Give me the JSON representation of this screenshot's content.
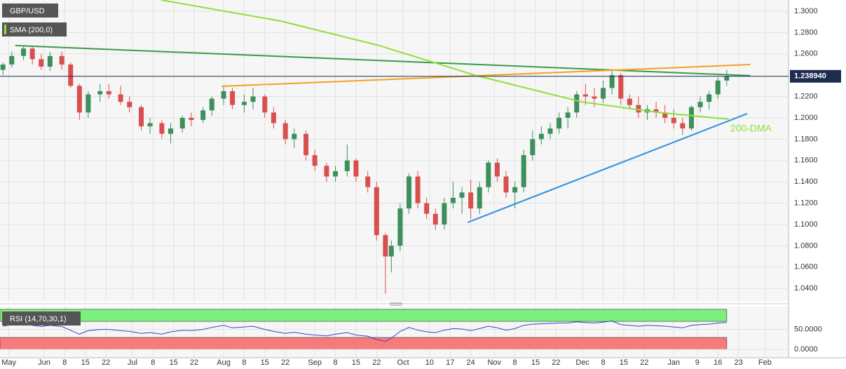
{
  "chart_data": {
    "type": "candlestick",
    "title": "GBP/USD",
    "indicator": "SMA (200,0)",
    "up_color": "#3d8f5c",
    "down_color": "#d94f4f",
    "xlim": [
      -15,
      253
    ],
    "ylim": [
      1.0276,
      1.3105
    ],
    "grid": true,
    "xticks": [
      {
        "value": -12,
        "label": "May"
      },
      {
        "value": 0,
        "label": "Jun"
      },
      {
        "value": 7,
        "label": "8"
      },
      {
        "value": 14,
        "label": "15"
      },
      {
        "value": 21,
        "label": "22"
      },
      {
        "value": 30,
        "label": "Jul"
      },
      {
        "value": 37,
        "label": "8"
      },
      {
        "value": 44,
        "label": "15"
      },
      {
        "value": 51,
        "label": "22"
      },
      {
        "value": 61,
        "label": "Aug"
      },
      {
        "value": 68,
        "label": "8"
      },
      {
        "value": 75,
        "label": "15"
      },
      {
        "value": 82,
        "label": "22"
      },
      {
        "value": 92,
        "label": "Sep"
      },
      {
        "value": 99,
        "label": "8"
      },
      {
        "value": 106,
        "label": "15"
      },
      {
        "value": 113,
        "label": "22"
      },
      {
        "value": 122,
        "label": "Oct"
      },
      {
        "value": 131,
        "label": "10"
      },
      {
        "value": 138,
        "label": "17"
      },
      {
        "value": 145,
        "label": "24"
      },
      {
        "value": 153,
        "label": "Nov"
      },
      {
        "value": 160,
        "label": "8"
      },
      {
        "value": 167,
        "label": "15"
      },
      {
        "value": 174,
        "label": "22"
      },
      {
        "value": 183,
        "label": "Dec"
      },
      {
        "value": 190,
        "label": "8"
      },
      {
        "value": 197,
        "label": "15"
      },
      {
        "value": 204,
        "label": "22"
      },
      {
        "value": 214,
        "label": "Jan"
      },
      {
        "value": 222,
        "label": "9"
      },
      {
        "value": 229,
        "label": "16"
      },
      {
        "value": 236,
        "label": "23"
      },
      {
        "value": 245,
        "label": "Feb"
      }
    ],
    "yticks": [
      {
        "value": 1.3,
        "label": "1.3000"
      },
      {
        "value": 1.28,
        "label": "1.2800"
      },
      {
        "value": 1.26,
        "label": "1.2600"
      },
      {
        "value": 1.22,
        "label": "1.2200"
      },
      {
        "value": 1.2,
        "label": "1.2000"
      },
      {
        "value": 1.18,
        "label": "1.1800"
      },
      {
        "value": 1.16,
        "label": "1.1600"
      },
      {
        "value": 1.14,
        "label": "1.1400"
      },
      {
        "value": 1.12,
        "label": "1.1200"
      },
      {
        "value": 1.1,
        "label": "1.1000"
      },
      {
        "value": 1.08,
        "label": "1.0800"
      },
      {
        "value": 1.06,
        "label": "1.0600"
      },
      {
        "value": 1.04,
        "label": "1.0400"
      }
    ],
    "x": [
      -14,
      -11,
      -7,
      -4,
      -1,
      2,
      6,
      9,
      12,
      15,
      19,
      22,
      26,
      29,
      33,
      36,
      40,
      43,
      47,
      50,
      54,
      57,
      61,
      64,
      68,
      71,
      75,
      78,
      82,
      85,
      89,
      92,
      96,
      99,
      103,
      106,
      110,
      113,
      116,
      118,
      121,
      124,
      127,
      130,
      133,
      136,
      139,
      142,
      145,
      148,
      151,
      154,
      157,
      160,
      163,
      166,
      169,
      172,
      175,
      178,
      181,
      184,
      187,
      190,
      193,
      196,
      199,
      202,
      205,
      208,
      211,
      214,
      217,
      220,
      223,
      226,
      229,
      232
    ],
    "open": [
      1.245,
      1.25,
      1.258,
      1.265,
      1.255,
      1.248,
      1.258,
      1.25,
      1.23,
      1.205,
      1.222,
      1.225,
      1.222,
      1.215,
      1.21,
      1.192,
      1.195,
      1.185,
      1.19,
      1.2,
      1.198,
      1.207,
      1.218,
      1.225,
      1.212,
      1.215,
      1.22,
      1.205,
      1.195,
      1.18,
      1.185,
      1.165,
      1.155,
      1.145,
      1.15,
      1.16,
      1.145,
      1.135,
      1.09,
      1.07,
      1.08,
      1.115,
      1.145,
      1.12,
      1.11,
      1.1,
      1.12,
      1.125,
      1.13,
      1.115,
      1.135,
      1.158,
      1.145,
      1.13,
      1.135,
      1.165,
      1.18,
      1.185,
      1.19,
      1.2,
      1.205,
      1.222,
      1.22,
      1.218,
      1.228,
      1.24,
      1.218,
      1.212,
      1.205,
      1.208,
      1.205,
      1.2,
      1.195,
      1.19,
      1.21,
      1.215,
      1.222,
      1.235
    ],
    "high": [
      1.252,
      1.262,
      1.268,
      1.267,
      1.26,
      1.262,
      1.262,
      1.252,
      1.232,
      1.225,
      1.232,
      1.232,
      1.23,
      1.22,
      1.212,
      1.2,
      1.198,
      1.195,
      1.202,
      1.205,
      1.21,
      1.22,
      1.23,
      1.228,
      1.222,
      1.228,
      1.222,
      1.21,
      1.198,
      1.19,
      1.188,
      1.17,
      1.158,
      1.155,
      1.175,
      1.162,
      1.15,
      1.14,
      1.092,
      1.085,
      1.12,
      1.148,
      1.15,
      1.125,
      1.115,
      1.125,
      1.14,
      1.135,
      1.142,
      1.14,
      1.16,
      1.162,
      1.15,
      1.14,
      1.17,
      1.188,
      1.192,
      1.195,
      1.205,
      1.21,
      1.225,
      1.232,
      1.228,
      1.235,
      1.245,
      1.242,
      1.222,
      1.22,
      1.212,
      1.215,
      1.212,
      1.208,
      1.2,
      1.212,
      1.22,
      1.225,
      1.238,
      1.245
    ],
    "low": [
      1.24,
      1.247,
      1.254,
      1.25,
      1.245,
      1.244,
      1.245,
      1.228,
      1.198,
      1.2,
      1.215,
      1.218,
      1.212,
      1.205,
      1.188,
      1.185,
      1.18,
      1.176,
      1.186,
      1.192,
      1.195,
      1.202,
      1.212,
      1.208,
      1.205,
      1.208,
      1.2,
      1.19,
      1.175,
      1.172,
      1.16,
      1.15,
      1.14,
      1.14,
      1.145,
      1.14,
      1.13,
      1.085,
      1.035,
      1.055,
      1.075,
      1.11,
      1.115,
      1.105,
      1.095,
      1.095,
      1.115,
      1.11,
      1.105,
      1.11,
      1.13,
      1.14,
      1.125,
      1.115,
      1.13,
      1.16,
      1.175,
      1.18,
      1.185,
      1.19,
      1.2,
      1.212,
      1.21,
      1.214,
      1.222,
      1.212,
      1.208,
      1.2,
      1.198,
      1.2,
      1.195,
      1.19,
      1.184,
      1.188,
      1.205,
      1.208,
      1.218,
      1.23
    ],
    "close": [
      1.25,
      1.258,
      1.265,
      1.255,
      1.248,
      1.258,
      1.25,
      1.23,
      1.205,
      1.222,
      1.225,
      1.222,
      1.215,
      1.21,
      1.192,
      1.195,
      1.185,
      1.19,
      1.2,
      1.198,
      1.207,
      1.218,
      1.225,
      1.212,
      1.215,
      1.22,
      1.205,
      1.195,
      1.18,
      1.185,
      1.165,
      1.155,
      1.145,
      1.15,
      1.16,
      1.145,
      1.135,
      1.09,
      1.07,
      1.08,
      1.115,
      1.145,
      1.12,
      1.11,
      1.1,
      1.12,
      1.125,
      1.13,
      1.115,
      1.135,
      1.158,
      1.145,
      1.13,
      1.135,
      1.165,
      1.18,
      1.185,
      1.19,
      1.2,
      1.205,
      1.222,
      1.22,
      1.218,
      1.228,
      1.24,
      1.218,
      1.212,
      1.205,
      1.208,
      1.205,
      1.2,
      1.195,
      1.19,
      1.21,
      1.215,
      1.222,
      1.235,
      1.239
    ],
    "last_price": {
      "value": 1.23894,
      "label": "1.238940",
      "color": "#1d2b4f"
    },
    "sma": {
      "label": "200-DMA",
      "color": "#8ee03a",
      "x": [
        39.8,
        80.3,
        113.6,
        147,
        182.7,
        209,
        232.7
      ],
      "values": [
        1.3105,
        1.2908,
        1.268,
        1.2395,
        1.215,
        1.205,
        1.1987
      ]
    },
    "trendlines": [
      {
        "color": "#3d9a4a",
        "x": [
          -9.8,
          240
        ],
        "values": [
          1.2678,
          1.2395
        ]
      },
      {
        "color": "#f5a020",
        "x": [
          60.3,
          240
        ],
        "values": [
          1.2296,
          1.25
        ]
      },
      {
        "color": "#2f8fe0",
        "x": [
          144,
          239
        ],
        "values": [
          1.102,
          1.204
        ]
      }
    ],
    "rsi": {
      "title": "RSI (14,70,30,1)",
      "color": "#3346c8",
      "ylim": [
        -20.7,
        106.9
      ],
      "overbought": 70,
      "oversold": 30,
      "ceiling": 100,
      "floor": 0,
      "yticks": [
        {
          "value": 50,
          "label": "50.0000"
        },
        {
          "value": 0,
          "label": "0.0000"
        }
      ],
      "values": [
        58,
        62,
        66,
        60,
        57,
        60,
        57,
        48,
        38,
        47,
        50,
        50,
        47,
        45,
        40,
        42,
        38,
        44,
        48,
        47,
        50,
        55,
        60,
        54,
        56,
        58,
        50,
        45,
        40,
        43,
        38,
        36,
        34,
        38,
        42,
        36,
        33,
        25,
        20,
        28,
        45,
        55,
        48,
        44,
        42,
        48,
        52,
        51,
        47,
        52,
        58,
        54,
        48,
        52,
        60,
        63,
        64,
        65,
        66,
        66,
        69,
        67,
        66,
        68,
        71,
        62,
        60,
        58,
        60,
        59,
        58,
        56,
        54,
        60,
        62,
        63,
        66,
        67
      ]
    }
  }
}
